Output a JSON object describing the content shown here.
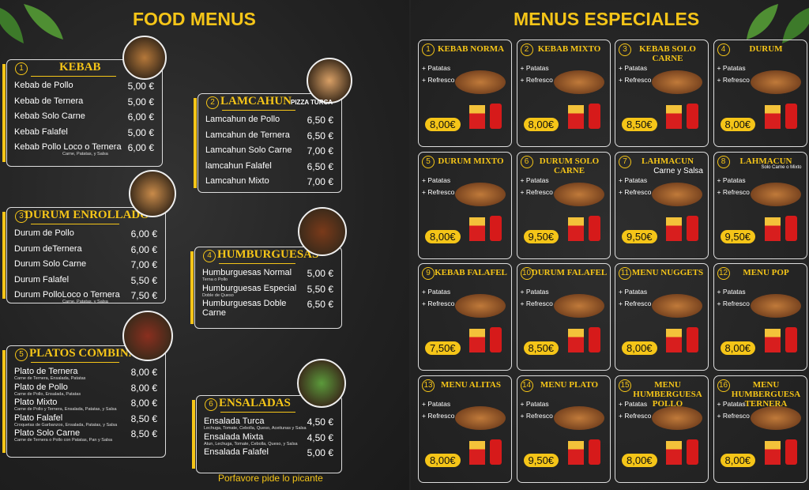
{
  "header": {
    "left_title": "FOOD MENUS",
    "right_title": "MENUS ESPECIALES"
  },
  "sections": [
    {
      "number": "1",
      "title": "KEBAB",
      "items": [
        {
          "name": "Kebab de Pollo",
          "price": "5,00 €"
        },
        {
          "name": "Kebab de Ternera",
          "price": "5,00 €"
        },
        {
          "name": "Kebab Solo Carne",
          "price": "6,00 €"
        },
        {
          "name": "Kebab Falafel",
          "price": "5,00 €"
        },
        {
          "name": "Kebab Pollo Loco o Ternera",
          "price": "6,00 €",
          "note": "Carne, Patatas, y Salsa"
        }
      ]
    },
    {
      "number": "2",
      "title": "LAMCAHUN",
      "tag": "PIZZA TURCA",
      "items": [
        {
          "name": "Lamcahun de Pollo",
          "price": "6,50 €"
        },
        {
          "name": "Lamcahun de Ternera",
          "price": "6,50 €"
        },
        {
          "name": "Lamcahun Solo Carne",
          "price": "7,00 €"
        },
        {
          "name": "lamcahun Falafel",
          "price": "6,50 €"
        },
        {
          "name": "Lamcahun Mixto",
          "price": "7,00 €"
        }
      ]
    },
    {
      "number": "3",
      "title": "DURUM ENROLLADO",
      "items": [
        {
          "name": "Durum de Pollo",
          "price": "6,00 €"
        },
        {
          "name": "Durum deTernera",
          "price": "6,00 €"
        },
        {
          "name": "Durum Solo Carne",
          "price": "7,00 €"
        },
        {
          "name": "Durum Falafel",
          "price": "5,50 €"
        },
        {
          "name": "Durum PolloLoco o Ternera",
          "price": "7,50 €",
          "note": "Carne, Patatas, y Salsa"
        }
      ]
    },
    {
      "number": "4",
      "title": "HUMBURGUESAS",
      "items": [
        {
          "name": "Humburguesas Normal",
          "price": "5,00 €",
          "note": "Terna o Pollo"
        },
        {
          "name": "Humburguesas Especial",
          "price": "5,50 €",
          "note": "Doble de Queso"
        },
        {
          "name": "Humburguesas Doble Carne",
          "price": "6,50 €"
        }
      ]
    },
    {
      "number": "5",
      "title": "PLATOS COMBINADOS",
      "items": [
        {
          "name": "Plato de Ternera",
          "price": "8,00 €",
          "note": "Carne de Ternera, Ensalada, Patatas"
        },
        {
          "name": "Plato de Pollo",
          "price": "8,00 €",
          "note": "Carne de Pollo, Ensalada, Patatas"
        },
        {
          "name": "Plato Mixto",
          "price": "8,00 €",
          "note": "Carne de Pollo y Ternera, Ensalada, Patatas, y Salsa"
        },
        {
          "name": "Plato Falafel",
          "price": "8,50 €",
          "note": "Croquetas de Garbanzos, Ensalada, Patatas, y Salsa"
        },
        {
          "name": "Plato Solo Carne",
          "price": "8,50 €",
          "note": "Carne de Ternera o Pollo con Patatas, Pan y Salsa"
        }
      ]
    },
    {
      "number": "6",
      "title": "ENSALADAS",
      "items": [
        {
          "name": "Ensalada Turca",
          "price": "4,50 €",
          "note": "Lechuga, Tomate, Cebolla, Queso, Aceitunas y Salsa"
        },
        {
          "name": "Ensalada Mixta",
          "price": "4,50 €",
          "note": "Atun, Lechuga, Tomate, Cebolla, Queso, y Salsa"
        },
        {
          "name": "Ensalada Falafel",
          "price": "5,00 €"
        }
      ]
    }
  ],
  "footer": "Porfavore pide lo picante",
  "menus": [
    {
      "number": "1",
      "title": "KEBAB NORMA",
      "extras": [
        "+ Patatas",
        "+ Refresco"
      ],
      "price": "8,00€"
    },
    {
      "number": "2",
      "title": "KEBAB MIXTO",
      "extras": [
        "+ Patatas",
        "+ Refresco"
      ],
      "price": "8,00€"
    },
    {
      "number": "3",
      "title": "KEBAB SOLO CARNE",
      "extras": [
        "+ Patatas",
        "+ Refresco"
      ],
      "price": "8,50€"
    },
    {
      "number": "4",
      "title": "DURUM",
      "extras": [
        "+ Patatas",
        "+ Refresco"
      ],
      "price": "8,00€"
    },
    {
      "number": "5",
      "title": "DURUM MIXTO",
      "extras": [
        "+ Patatas",
        "+ Refresco"
      ],
      "price": "8,00€"
    },
    {
      "number": "6",
      "title": "DURUM SOLO CARNE",
      "extras": [
        "+ Patatas",
        "+ Refresco"
      ],
      "price": "9,50€"
    },
    {
      "number": "7",
      "title": "LAHMACUN",
      "subtitle": "Carne y Salsa",
      "extras": [
        "+ Patatas",
        "+ Refresco"
      ],
      "price": "9,50€"
    },
    {
      "number": "8",
      "title": "LAHMACUN",
      "subtitle": "Solo Carne o Mixto",
      "extras": [
        "+ Patatas",
        "+ Refresco"
      ],
      "price": "9,50€"
    },
    {
      "number": "9",
      "title": "KEBAB FALAFEL",
      "extras": [
        "+ Patatas",
        "+ Refresco"
      ],
      "price": "7,50€"
    },
    {
      "number": "10",
      "title": "DURUM FALAFEL",
      "extras": [
        "+ Patatas",
        "+ Refresco"
      ],
      "price": "8,50€"
    },
    {
      "number": "11",
      "title": "MENU NUGGETS",
      "extras": [
        "+ Patatas",
        "+ Refresco"
      ],
      "price": "8,00€"
    },
    {
      "number": "12",
      "title": "MENU POP",
      "extras": [
        "+ Patatas",
        "+ Refresco"
      ],
      "price": "8,00€"
    },
    {
      "number": "13",
      "title": "MENU ALITAS",
      "extras": [
        "+ Patatas",
        "+ Refresco"
      ],
      "price": "8,00€"
    },
    {
      "number": "14",
      "title": "MENU PLATO",
      "extras": [
        "+ Patatas",
        "+ Refresco"
      ],
      "price": "9,50€"
    },
    {
      "number": "15",
      "title": "MENU HUMBERGUESA POLLO",
      "extras": [
        "+ Patatas",
        "+ Refresco"
      ],
      "price": "8,00€"
    },
    {
      "number": "16",
      "title": "MENU HUMBERGUESA TERNERA",
      "extras": [
        "+ Patatas",
        "+ Refresco"
      ],
      "price": "8,00€"
    }
  ]
}
